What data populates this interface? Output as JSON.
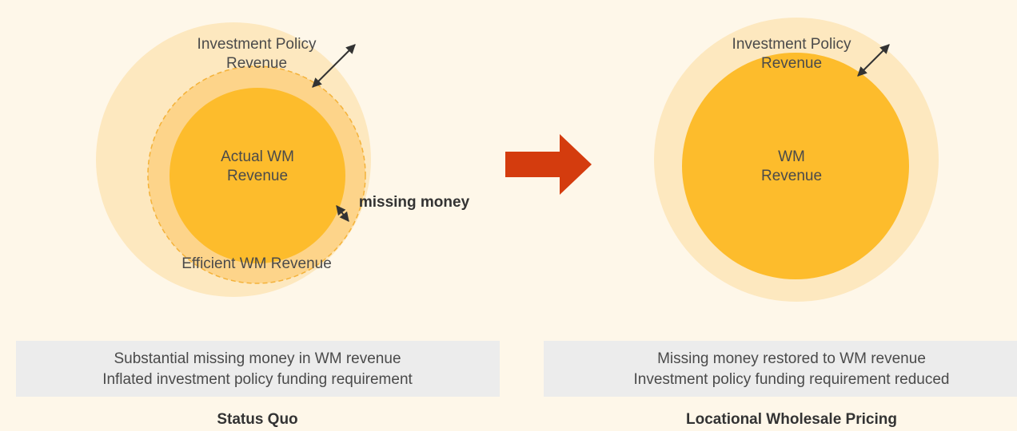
{
  "left": {
    "outer_label": [
      "Investment Policy",
      "Revenue"
    ],
    "inner_label": [
      "Actual WM",
      "Revenue"
    ],
    "missing_label": "missing money",
    "efficient_label": "Efficient WM Revenue",
    "caption": [
      "Substantial missing money in WM revenue",
      "Inflated investment policy funding requirement"
    ],
    "title": "Status Quo"
  },
  "right": {
    "outer_label": [
      "Investment Policy",
      "Revenue"
    ],
    "inner_label": [
      "WM",
      "Revenue"
    ],
    "caption": [
      "Missing money restored to WM revenue",
      "Investment policy funding requirement reduced"
    ],
    "title": "Locational Wholesale Pricing"
  }
}
